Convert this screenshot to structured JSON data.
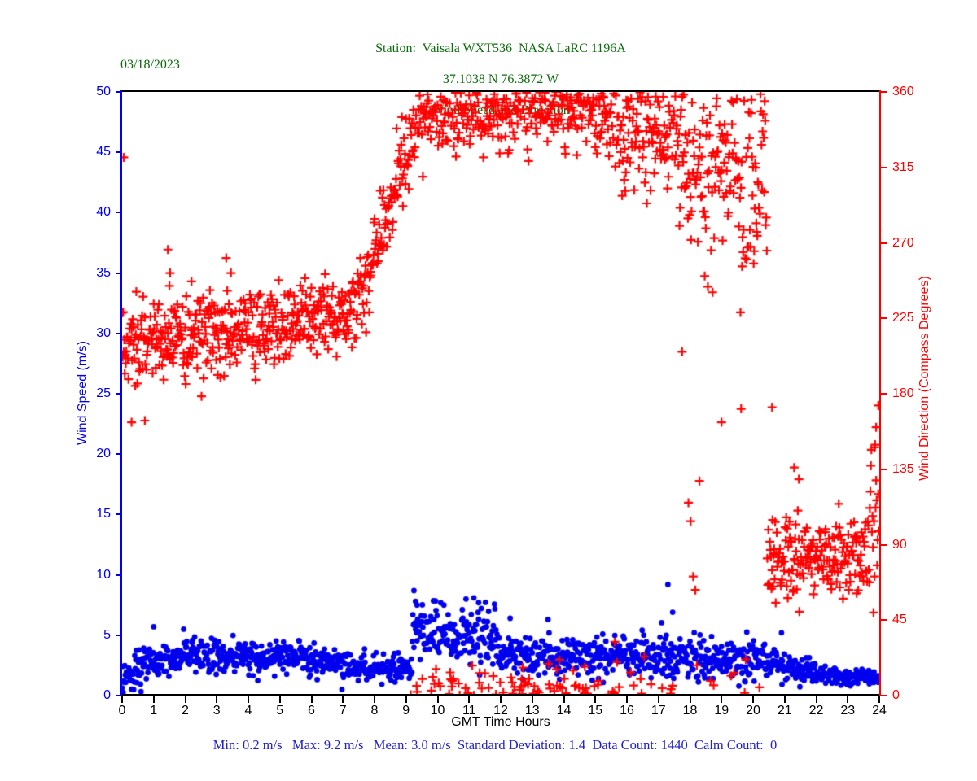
{
  "header": {
    "date": "03/18/2023",
    "title_line1": "Station:  Vaisala WXT536  NASA LaRC 1196A",
    "title_line2": "37.1038 N 76.3872 W",
    "title_line3": "Wind Speed and Direction"
  },
  "footer": {
    "xlabel": "GMT Time Hours",
    "stats": "Min: 0.2 m/s   Max: 9.2 m/s   Mean: 3.0 m/s  Standard Deviation: 1.4  Data Count: 1440  Calm Count:  0"
  },
  "colors": {
    "speed": "#0000ee",
    "direction": "#ff0000",
    "title_green": "#0a6b0a",
    "stats_blue": "#2222cc",
    "frame_black": "#000000"
  },
  "chart_data": {
    "type": "scatter",
    "title": "Wind Speed and Direction",
    "subtitle": "Station:  Vaisala WXT536  NASA LaRC 1196A / 37.1038 N 76.3872 W",
    "date": "03/18/2023",
    "xlabel": "GMT Time Hours",
    "x_range": [
      0,
      24
    ],
    "x_ticks": [
      0,
      1,
      2,
      3,
      4,
      5,
      6,
      7,
      8,
      9,
      10,
      11,
      12,
      13,
      14,
      15,
      16,
      17,
      18,
      19,
      20,
      21,
      22,
      23,
      24
    ],
    "grid": false,
    "legend": "none",
    "left_axis": {
      "label": "Wind Speed (m/s)",
      "range": [
        0,
        50
      ],
      "ticks": [
        0,
        5,
        10,
        15,
        20,
        25,
        30,
        35,
        40,
        45,
        50
      ],
      "color": "#0000ee"
    },
    "right_axis": {
      "label": "Wind Direction (Compass Degrees)",
      "range": [
        0,
        360
      ],
      "ticks": [
        0,
        45,
        90,
        135,
        180,
        225,
        270,
        315,
        360
      ],
      "color": "#ff0000"
    },
    "sampling": "one sample per minute, 1440 points per series",
    "seed": 20230318,
    "stats": {
      "min_ms": 0.2,
      "max_ms": 9.2,
      "mean_ms": 3.0,
      "std_dev": 1.4,
      "data_count": 1440,
      "calm_count": 0
    },
    "series": [
      {
        "name": "wind_speed",
        "axis": "left",
        "marker": "dot",
        "marker_radius_px": 3.4,
        "color": "#0000ee",
        "n": 1440,
        "clamp": [
          0.2,
          9.2
        ],
        "segments": [
          {
            "t0": 0.0,
            "t1": 0.4,
            "v0": 1.4,
            "v1": 1.7,
            "sd": 0.45
          },
          {
            "t0": 0.4,
            "t1": 2.0,
            "v0": 2.3,
            "v1": 3.0,
            "sd": 0.8
          },
          {
            "t0": 2.0,
            "t1": 5.0,
            "v0": 3.3,
            "v1": 3.2,
            "sd": 0.8
          },
          {
            "t0": 5.0,
            "t1": 7.0,
            "v0": 3.1,
            "v1": 2.9,
            "sd": 0.65
          },
          {
            "t0": 7.0,
            "t1": 9.2,
            "v0": 2.6,
            "v1": 2.3,
            "sd": 0.55
          },
          {
            "t0": 9.2,
            "t1": 11.9,
            "v0": 5.2,
            "v1": 5.0,
            "sd": 1.25
          },
          {
            "t0": 11.9,
            "t1": 15.0,
            "v0": 3.2,
            "v1": 3.3,
            "sd": 0.75
          },
          {
            "t0": 15.0,
            "t1": 17.3,
            "v0": 3.2,
            "v1": 3.3,
            "sd": 0.9
          },
          {
            "t0": 17.3,
            "t1": 20.5,
            "v0": 3.1,
            "v1": 2.7,
            "sd": 0.85
          },
          {
            "t0": 20.5,
            "t1": 22.0,
            "v0": 2.6,
            "v1": 2.0,
            "sd": 0.5
          },
          {
            "t0": 22.0,
            "t1": 24.0,
            "v0": 1.8,
            "v1": 1.5,
            "sd": 0.35
          }
        ],
        "outliers": [
          [
            1.0,
            5.7
          ],
          [
            1.95,
            5.5
          ],
          [
            9.25,
            8.7
          ],
          [
            9.3,
            7.8
          ],
          [
            9.35,
            7.5
          ],
          [
            10.9,
            8.0
          ],
          [
            11.15,
            8.1
          ],
          [
            11.3,
            7.7
          ],
          [
            12.3,
            6.4
          ],
          [
            13.5,
            6.3
          ],
          [
            17.3,
            9.2
          ],
          [
            17.45,
            6.9
          ],
          [
            20.9,
            5.2
          ]
        ]
      },
      {
        "name": "wind_direction",
        "axis": "right",
        "marker": "plus",
        "marker_size_px": 11,
        "marker_stroke_px": 2.2,
        "color": "#ff0000",
        "n": 1440,
        "wrap": 360,
        "segments": [
          {
            "t0": 0.0,
            "t1": 2.0,
            "v0": 212,
            "v1": 215,
            "sd": 14
          },
          {
            "t0": 2.0,
            "t1": 5.0,
            "v0": 213,
            "v1": 221,
            "sd": 12
          },
          {
            "t0": 5.0,
            "t1": 7.25,
            "v0": 221,
            "v1": 229,
            "sd": 10
          },
          {
            "t0": 7.25,
            "t1": 8.3,
            "v0": 231,
            "v1": 281,
            "sd": 13
          },
          {
            "t0": 8.3,
            "t1": 9.3,
            "v0": 284,
            "v1": 338,
            "sd": 13
          },
          {
            "t0": 9.3,
            "t1": 15.6,
            "v0": 348,
            "v1": 351,
            "sd": 12
          },
          {
            "t0": 15.6,
            "t1": 17.5,
            "v0": 345,
            "v1": 331,
            "sd": 17
          },
          {
            "t0": 17.5,
            "t1": 19.3,
            "v0": 330,
            "v1": 310,
            "sd": 28
          },
          {
            "t0": 19.3,
            "t1": 20.45,
            "v0": 315,
            "v1": 305,
            "sd": 30
          },
          {
            "t0": 20.45,
            "t1": 23.7,
            "v0": 83,
            "v1": 80,
            "sd": 13
          },
          {
            "t0": 23.7,
            "t1": 24.0,
            "v0": 88,
            "v1": 128,
            "sd": 26
          }
        ],
        "outliers": [
          [
            0.05,
            321
          ],
          [
            0.3,
            163
          ],
          [
            0.72,
            164
          ],
          [
            1.45,
            266
          ],
          [
            1.52,
            252
          ],
          [
            2.2,
            247
          ],
          [
            3.3,
            261
          ],
          [
            3.45,
            252
          ],
          [
            17.75,
            205
          ],
          [
            17.95,
            115
          ],
          [
            18.02,
            104
          ],
          [
            18.1,
            71
          ],
          [
            18.17,
            63
          ],
          [
            18.3,
            128
          ],
          [
            19.0,
            163
          ],
          [
            19.62,
            171
          ],
          [
            20.6,
            172
          ],
          [
            21.3,
            136
          ],
          [
            21.45,
            129
          ],
          [
            23.85,
            148
          ],
          [
            23.9,
            160
          ],
          [
            23.97,
            173
          ]
        ]
      }
    ]
  }
}
